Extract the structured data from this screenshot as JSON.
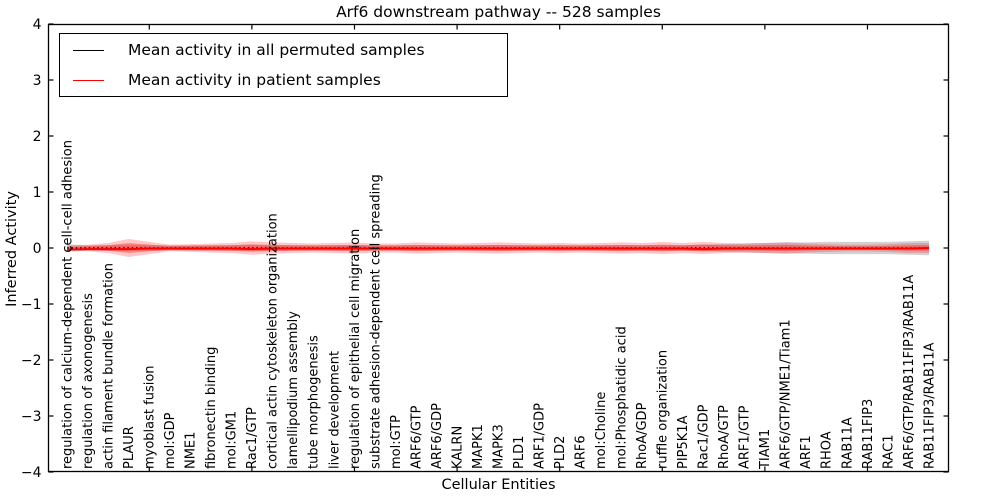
{
  "chart_data": {
    "type": "line",
    "title": "Arf6 downstream pathway -- 528 samples",
    "xlabel": "Cellular Entities",
    "ylabel": "Inferred Activity",
    "ylim": [
      -4,
      4
    ],
    "grid": false,
    "legend_position": "upper left",
    "yticks": [
      "4",
      "3",
      "2",
      "1",
      "0",
      "−1",
      "−2",
      "−3",
      "−4"
    ],
    "ytick_values": [
      4,
      3,
      2,
      1,
      0,
      -1,
      -2,
      -3,
      -4
    ],
    "xtick_indices": [
      4,
      9,
      14,
      19,
      24,
      29,
      34,
      39
    ],
    "categories": [
      "regulation of calcium-dependent cell-cell adhesion",
      "regulation of axonogenesis",
      "actin filament bundle formation",
      "PLAUR",
      "myoblast fusion",
      "mol:GDP",
      "NME1",
      "fibronectin binding",
      "mol:GM1",
      "Rac1/GTP",
      "cortical actin cytoskeleton organization",
      "lamellipodium assembly",
      "tube morphogenesis",
      "liver development",
      "regulation of epithelial cell migration",
      "substrate adhesion-dependent cell spreading",
      "mol:GTP",
      "ARF6/GTP",
      "ARF6/GDP",
      "KALRN",
      "MAPK1",
      "MAPK3",
      "PLD1",
      "ARF1/GDP",
      "PLD2",
      "ARF6",
      "mol:Choline",
      "mol:Phosphatidic acid",
      "RhoA/GDP",
      "ruffle organization",
      "PIP5K1A",
      "Rac1/GDP",
      "RhoA/GTP",
      "ARF1/GTP",
      "TIAM1",
      "ARF6/GTP/NME1/Tiam1",
      "ARF1",
      "RHOA",
      "RAB11A",
      "RAB11FIP3",
      "RAC1",
      "ARF6/GTP/RAB11FIP3/RAB11A",
      "RAB11FIP3/RAB11A"
    ],
    "legend": [
      {
        "label": "Mean activity in all permuted samples",
        "color": "#000000"
      },
      {
        "label": "Mean activity in patient samples",
        "color": "#ff0000"
      }
    ],
    "series": [
      {
        "name": "Mean activity in all permuted samples",
        "color": "#000000",
        "style": "dotted",
        "values": [
          0,
          0,
          0,
          0,
          0,
          0,
          0,
          0,
          0,
          0,
          0,
          0,
          0,
          0,
          0,
          0,
          0,
          0,
          0,
          0,
          0,
          0,
          0,
          0,
          0,
          0,
          0,
          0,
          0,
          0,
          0,
          0,
          0,
          0,
          0,
          0,
          0,
          0,
          0,
          0,
          0,
          0,
          0
        ]
      },
      {
        "name": "Mean activity in patient samples",
        "color": "#ff0000",
        "style": "solid",
        "values": [
          -0.03,
          -0.02,
          -0.02,
          -0.02,
          -0.01,
          -0.01,
          -0.01,
          -0.01,
          -0.01,
          -0.02,
          -0.01,
          -0.01,
          -0.01,
          -0.01,
          -0.01,
          -0.01,
          -0.01,
          -0.01,
          -0.01,
          -0.01,
          -0.01,
          -0.01,
          -0.01,
          -0.01,
          -0.01,
          -0.01,
          -0.01,
          -0.01,
          -0.01,
          -0.01,
          -0.01,
          -0.02,
          -0.01,
          -0.01,
          -0.01,
          -0.01,
          -0.01,
          -0.01,
          -0.01,
          -0.01,
          -0.01,
          -0.01,
          0.0
        ]
      }
    ],
    "bands": [
      {
        "name": "permuted-std-band",
        "color": "#999999",
        "opacity": 0.45,
        "center": 0,
        "halfwidths": [
          0.07,
          0.05,
          0.05,
          0.05,
          0.05,
          0.05,
          0.05,
          0.05,
          0.05,
          0.05,
          0.05,
          0.05,
          0.05,
          0.05,
          0.05,
          0.05,
          0.05,
          0.05,
          0.05,
          0.05,
          0.05,
          0.05,
          0.05,
          0.05,
          0.05,
          0.05,
          0.05,
          0.05,
          0.05,
          0.05,
          0.05,
          0.06,
          0.07,
          0.08,
          0.09,
          0.1,
          0.1,
          0.11,
          0.11,
          0.11,
          0.11,
          0.12,
          0.13
        ]
      },
      {
        "name": "patient-std-band",
        "color": "#ff0000",
        "opacity": 0.22,
        "center": 0,
        "halfwidths": [
          0.04,
          0.06,
          0.09,
          0.16,
          0.11,
          0.06,
          0.07,
          0.08,
          0.09,
          0.12,
          0.1,
          0.09,
          0.08,
          0.09,
          0.1,
          0.08,
          0.08,
          0.1,
          0.09,
          0.08,
          0.09,
          0.1,
          0.09,
          0.08,
          0.09,
          0.08,
          0.09,
          0.1,
          0.09,
          0.11,
          0.09,
          0.11,
          0.09,
          0.08,
          0.09,
          0.1,
          0.08,
          0.07,
          0.06,
          0.06,
          0.07,
          0.09,
          0.09
        ]
      }
    ]
  }
}
